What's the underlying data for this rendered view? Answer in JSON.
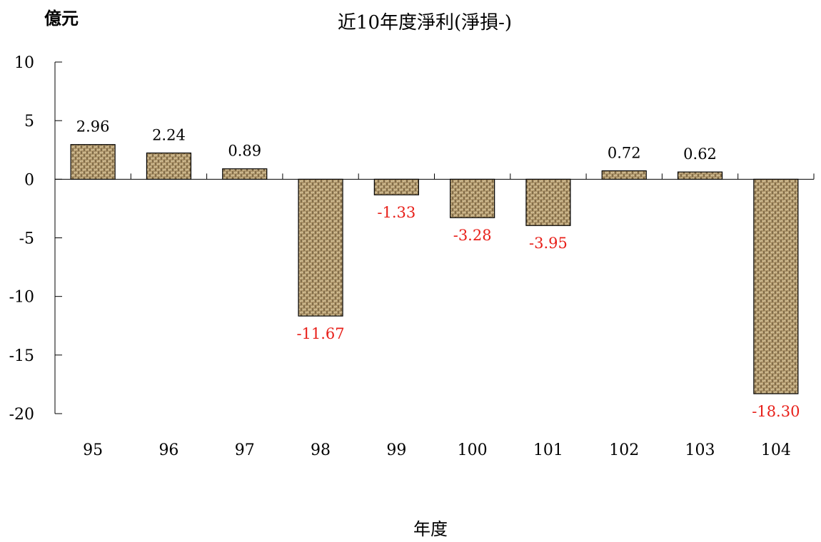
{
  "chart_data": {
    "type": "bar",
    "title": "近10年度淨利(淨損-)",
    "unit_label": "億元",
    "xlabel": "年度",
    "ylabel": "",
    "categories": [
      "95",
      "96",
      "97",
      "98",
      "99",
      "100",
      "101",
      "102",
      "103",
      "104"
    ],
    "values": [
      2.96,
      2.24,
      0.89,
      -11.67,
      -1.33,
      -3.28,
      -3.95,
      0.72,
      0.62,
      -18.3
    ],
    "value_labels": [
      "2.96",
      "2.24",
      "0.89",
      "-11.67",
      "-1.33",
      "-3.28",
      "-3.95",
      "0.72",
      "0.62",
      "-18.30"
    ],
    "ylim": [
      -20,
      10
    ],
    "yticks": [
      10,
      5,
      0,
      -5,
      -10,
      -15,
      -20
    ],
    "ytick_labels": [
      "10",
      "5",
      "0",
      "-5",
      "-10",
      "-15",
      "-20"
    ],
    "grid": false,
    "legend": "none",
    "colors": {
      "bar_fill": "#b39a6e",
      "bar_dark": "#6e5a3a",
      "bar_light": "#e0cfa6",
      "positive_label": "#000000",
      "negative_label": "#e8201a",
      "axis": "#000000"
    }
  }
}
